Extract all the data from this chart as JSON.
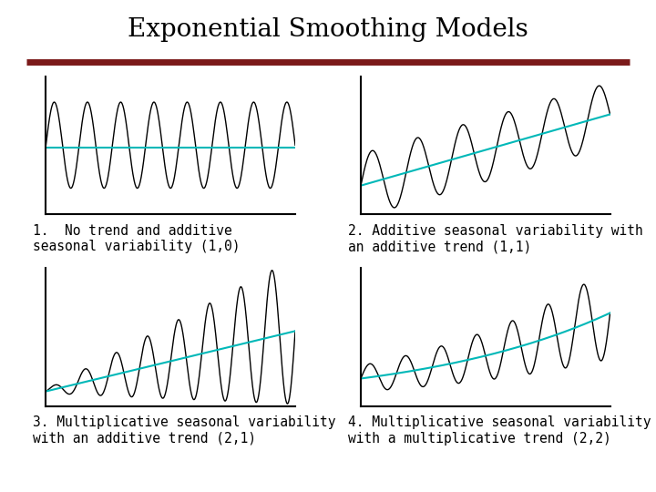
{
  "title": "Exponential Smoothing Models",
  "title_fontsize": 20,
  "title_font": "DejaVu Serif",
  "bg_color": "#ffffff",
  "divider_color": "#7b1a1a",
  "line_color": "#000000",
  "trend_color": "#00b8b8",
  "labels": [
    "1.  No trend and additive\nseasonal variability (1,0)",
    "2. Additive seasonal variability with\nan additive trend (1,1)",
    "3. Multiplicative seasonal variability\nwith an additive trend (2,1)",
    "4. Multiplicative seasonal variability\nwith a multiplicative trend (2,2)"
  ],
  "label_fontsize": 10.5,
  "label_font": "DejaVu Sans Mono"
}
